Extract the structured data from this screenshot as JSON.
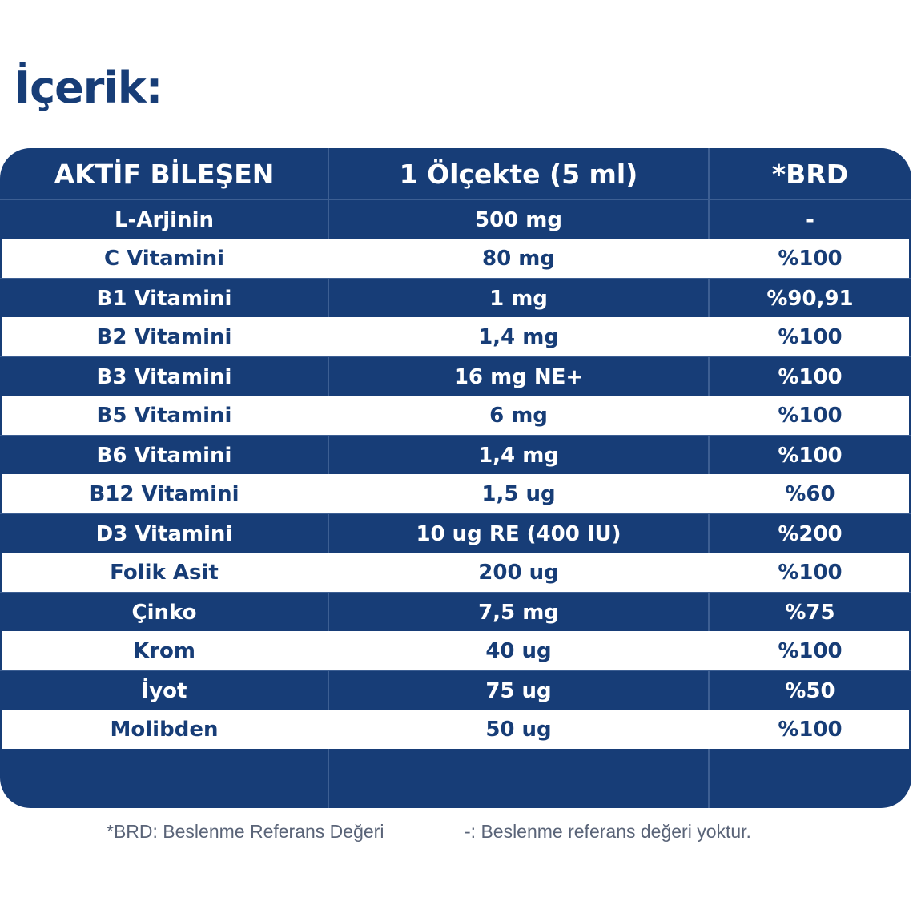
{
  "title": "İçerik:",
  "table": {
    "headers": [
      "AKTİF BİLEŞEN",
      "1 Ölçekte (5 ml)",
      "*BRD"
    ],
    "rows": [
      [
        "L-Arjinin",
        "500 mg",
        "-"
      ],
      [
        "C Vitamini",
        "80 mg",
        "%100"
      ],
      [
        "B1 Vitamini",
        "1 mg",
        "%90,91"
      ],
      [
        "B2 Vitamini",
        "1,4 mg",
        "%100"
      ],
      [
        "B3 Vitamini",
        "16 mg NE+",
        "%100"
      ],
      [
        "B5 Vitamini",
        "6 mg",
        "%100"
      ],
      [
        "B6 Vitamini",
        "1,4 mg",
        "%100"
      ],
      [
        "B12 Vitamini",
        "1,5 ug",
        "%60"
      ],
      [
        "D3 Vitamini",
        "10 ug RE (400 IU)",
        "%200"
      ],
      [
        "Folik Asit",
        "200 ug",
        "%100"
      ],
      [
        "Çinko",
        "7,5 mg",
        "%75"
      ],
      [
        "Krom",
        "40 ug",
        "%100"
      ],
      [
        "İyot",
        "75 ug",
        "%50"
      ],
      [
        "Molibden",
        "50 ug",
        "%100"
      ]
    ]
  },
  "footer": {
    "note1": "*BRD: Beslenme Referans Değeri",
    "note2": "-: Beslenme referans değeri yoktur."
  },
  "colors": {
    "primary": "#173d77",
    "row_light": "#ffffff",
    "footer_text": "#5a6478"
  }
}
